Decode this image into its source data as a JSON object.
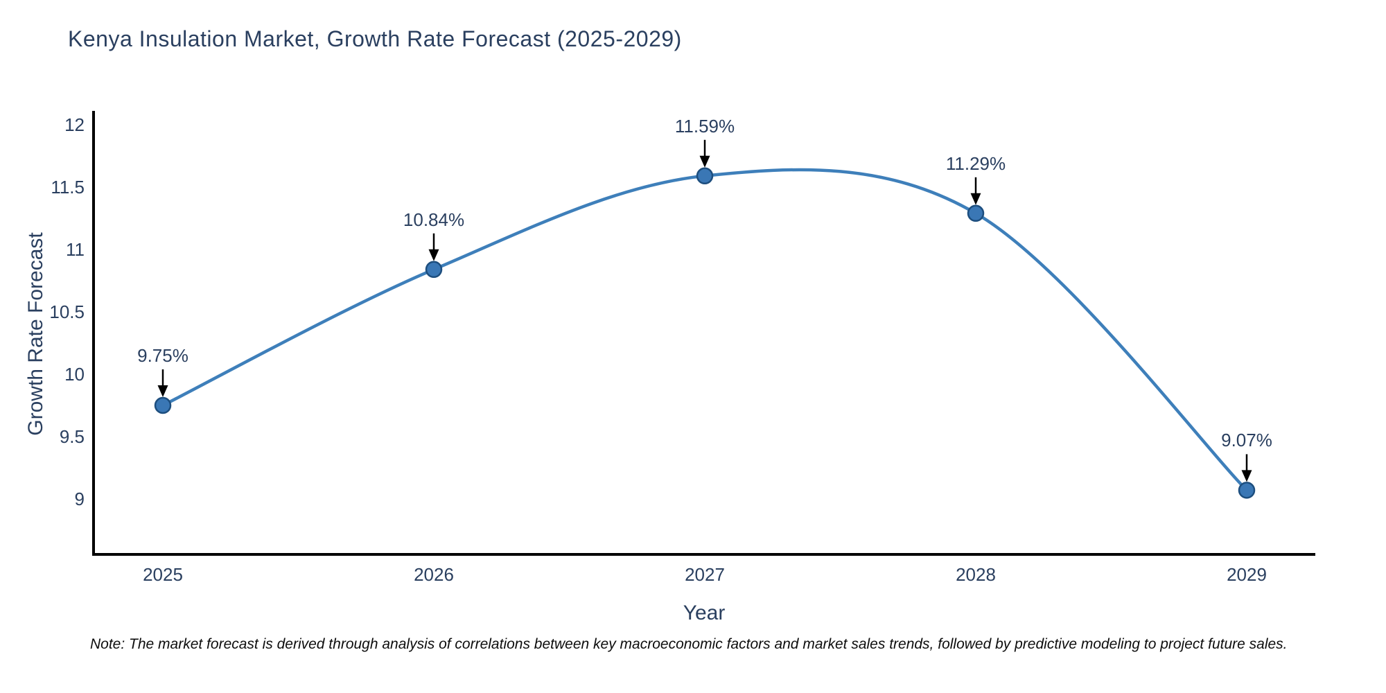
{
  "title": "Kenya Insulation Market, Growth Rate Forecast (2025-2029)",
  "note": "Note: The market forecast is derived through analysis of correlations between key macroeconomic factors and market sales trends, followed by predictive modeling to project future sales.",
  "chart_data": {
    "type": "line",
    "title": "Kenya Insulation Market, Growth Rate Forecast (2025-2029)",
    "xlabel": "Year",
    "ylabel": "Growth Rate Forecast",
    "x": [
      2025,
      2026,
      2027,
      2028,
      2029
    ],
    "series": [
      {
        "name": "Growth Rate Forecast",
        "values": [
          9.75,
          10.84,
          11.59,
          11.29,
          9.07
        ]
      }
    ],
    "point_labels": [
      "9.75%",
      "10.84%",
      "11.59%",
      "11.29%",
      "9.07%"
    ],
    "xticks": [
      "2025",
      "2026",
      "2027",
      "2028",
      "2029"
    ],
    "yticks": [
      9,
      9.5,
      10,
      10.5,
      11,
      11.5,
      12
    ],
    "ylim": [
      8.56,
      12.11
    ],
    "xlim": [
      2024.74,
      2029.25
    ],
    "grid": false,
    "legend_position": "none",
    "line_shape": "spline",
    "colors": {
      "line": "#3e7fba",
      "marker_fill": "#3a77b5",
      "marker_edge": "#1d4e7e",
      "axis_line": "#000000",
      "text": "#2a3f5f",
      "annotation_arrow": "#000000",
      "background": "#ffffff"
    }
  }
}
